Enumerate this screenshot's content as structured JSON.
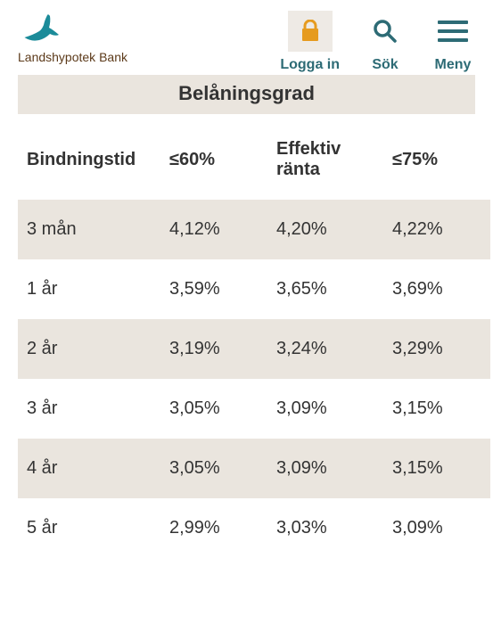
{
  "brand": {
    "name": "Landshypotek Bank",
    "bird_color": "#1b8b99",
    "text_color": "#5c3a1a"
  },
  "nav": {
    "login": {
      "label": "Logga in",
      "icon_color": "#e69b1f",
      "bg": "#eeeae5"
    },
    "search": {
      "label": "Sök",
      "icon_color": "#2d6b75"
    },
    "menu": {
      "label": "Meny",
      "icon_color": "#2d6b75"
    }
  },
  "table": {
    "title": "Belåningsgrad",
    "columns": [
      "Bindningstid",
      "≤60%",
      "Effektiv ränta",
      "≤75%"
    ],
    "header_bg": "#ffffff",
    "row_alt_bg": "#eae5de",
    "rows": [
      [
        "3 mån",
        "4,12%",
        "4,20%",
        "4,22%"
      ],
      [
        "1 år",
        "3,59%",
        "3,65%",
        "3,69%"
      ],
      [
        "2 år",
        "3,19%",
        "3,24%",
        "3,29%"
      ],
      [
        "3 år",
        "3,05%",
        "3,09%",
        "3,15%"
      ],
      [
        "4 år",
        "3,05%",
        "3,09%",
        "3,15%"
      ],
      [
        "5 år",
        "2,99%",
        "3,03%",
        "3,09%"
      ]
    ]
  },
  "colors": {
    "accent": "#2d6b75",
    "text": "#333333",
    "bg": "#ffffff"
  }
}
